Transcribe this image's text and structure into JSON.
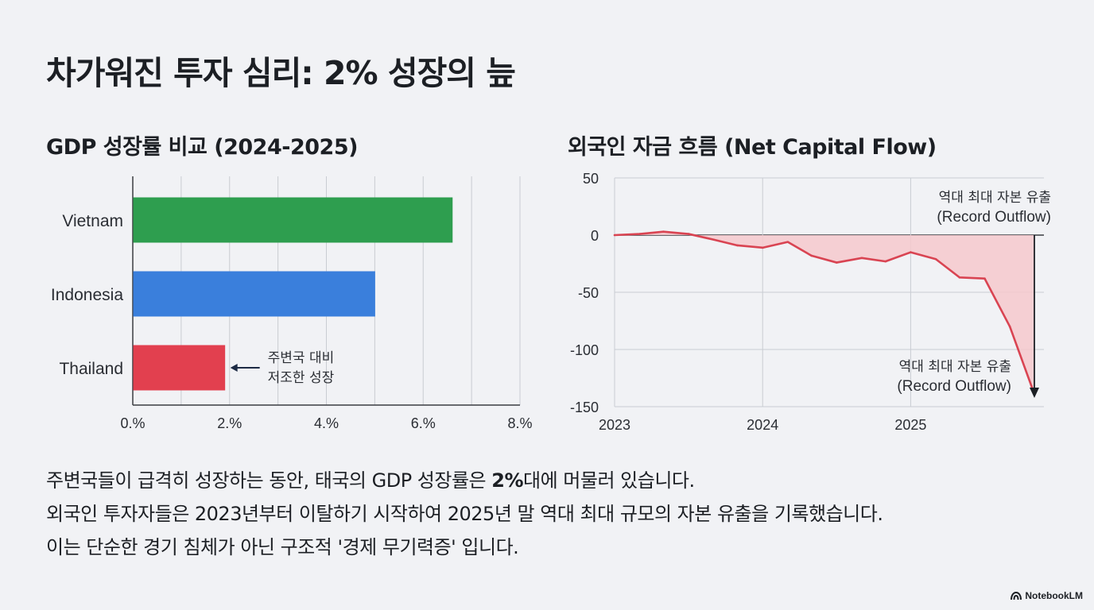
{
  "page": {
    "title": "차가워진 투자 심리: 2% 성장의 늪",
    "summary": {
      "line1_prefix": "주변국들이 급격히 성장하는 동안, 태국의 GDP 성장률은 ",
      "line1_bold": "2%",
      "line1_suffix": "대에 머물러 있습니다.",
      "line2": "외국인 투자자들은 2023년부터 이탈하기 시작하여 2025년 말 역대 최대 규모의 자본 유출을 기록했습니다.",
      "line3": "이는 단순한 경기 침체가 아닌 구조적 '경제 무기력증' 입니다."
    },
    "logo_text": "NotebookLM",
    "colors": {
      "vietnam": "#2e9e4f",
      "indonesia": "#3a7fdc",
      "thailand": "#e2404f",
      "line": "#d94452",
      "area": "#f6c9cd",
      "grid": "#c9ccd2",
      "axis": "#3a3d42"
    }
  },
  "chart_data": [
    {
      "type": "bar",
      "orientation": "horizontal",
      "title": "GDP 성장률 비교 (2024-2025)",
      "categories": [
        "Vietnam",
        "Indonesia",
        "Thailand"
      ],
      "values": [
        6.6,
        5.0,
        1.9
      ],
      "xlim": [
        0,
        8
      ],
      "xticks": [
        0,
        2,
        4,
        6,
        8
      ],
      "xtick_labels": [
        "0.%",
        "2.%",
        "4.%",
        "6.%",
        "8.%"
      ],
      "grid": "vertical",
      "annotation": {
        "category": "Thailand",
        "lines": [
          "주변국 대비",
          "저조한 성장"
        ]
      }
    },
    {
      "type": "area",
      "title": "외국인 자금 흐름 (Net Capital Flow)",
      "x": [
        2023.0,
        2023.17,
        2023.33,
        2023.5,
        2023.67,
        2023.83,
        2024.0,
        2024.17,
        2024.33,
        2024.5,
        2024.67,
        2024.83,
        2025.0,
        2025.17,
        2025.33,
        2025.5,
        2025.67,
        2025.83
      ],
      "y": [
        0,
        1,
        3,
        1,
        -4,
        -9,
        -11,
        -6,
        -18,
        -24,
        -20,
        -23,
        -15,
        -21,
        -37,
        -38,
        -80,
        -137
      ],
      "ylim": [
        -150,
        50
      ],
      "yticks": [
        50,
        0,
        -50,
        -100,
        -150
      ],
      "xlim": [
        2023,
        2025.9
      ],
      "xticks": [
        2023,
        2024,
        2025
      ],
      "xtick_labels": [
        "2023",
        "2024",
        "2025"
      ],
      "grid": "both",
      "annotations": [
        {
          "lines": [
            "역대 최대 자본 유출",
            "(Record Outflow)"
          ],
          "placement": "top-right"
        },
        {
          "lines": [
            "역대 최대 자본 유출",
            "(Record Outflow)"
          ],
          "placement": "near-arrow-bottom"
        }
      ]
    }
  ]
}
